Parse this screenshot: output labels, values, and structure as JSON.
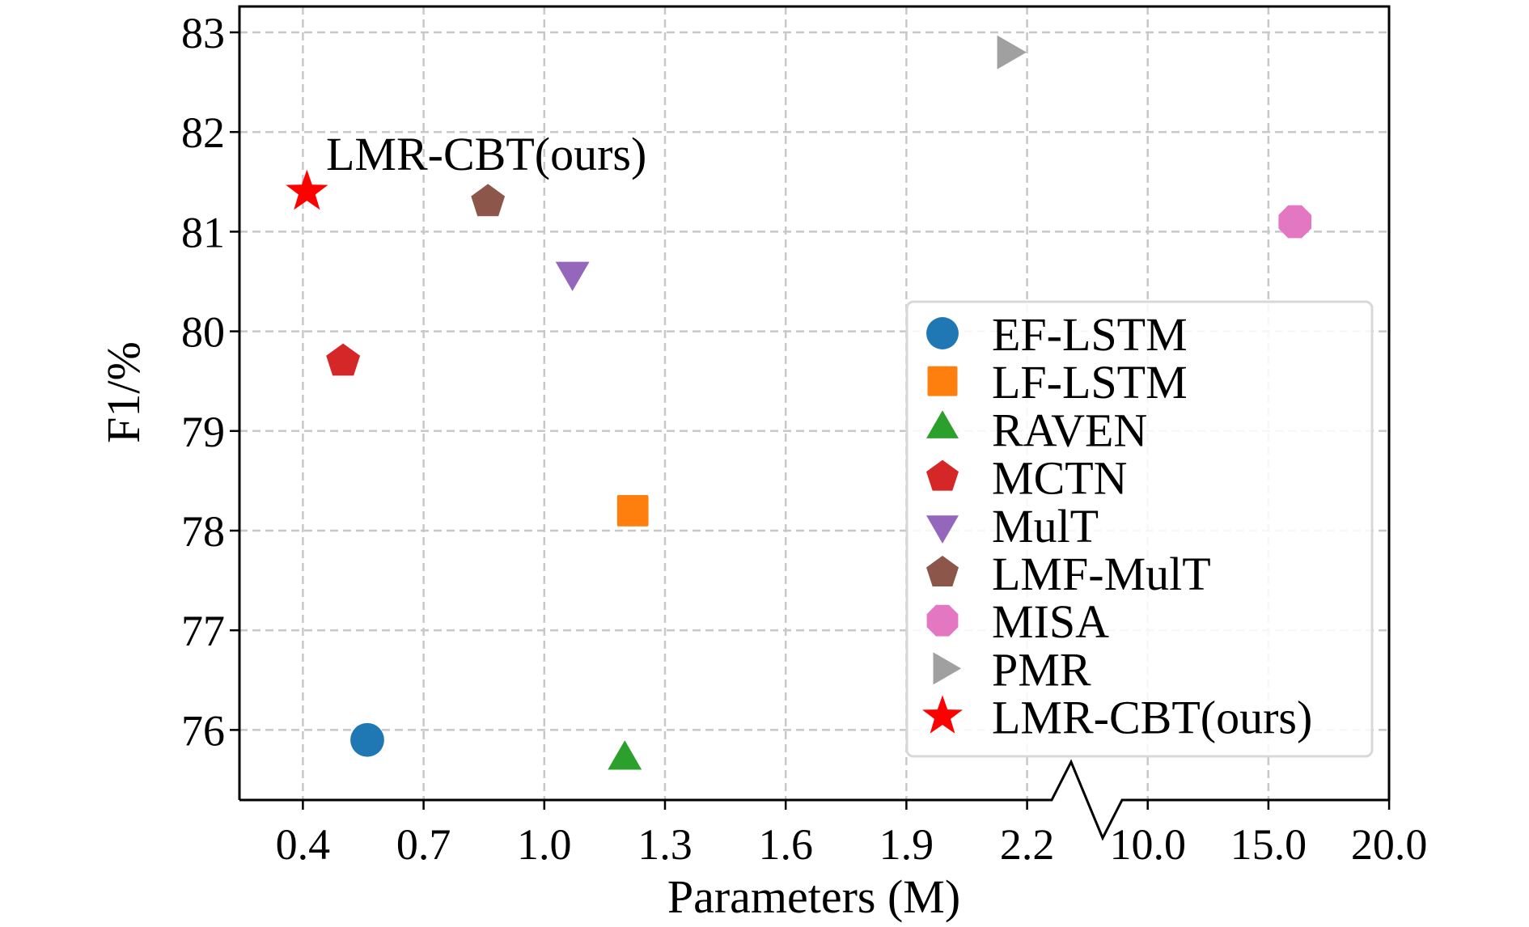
{
  "chart_data": {
    "type": "scatter",
    "title": "",
    "xlabel": "Parameters (M)",
    "ylabel": "F1/%",
    "xaxis": {
      "broken": true,
      "segments": [
        {
          "ticks": [
            0.4,
            0.7,
            1.0,
            1.3,
            1.6,
            1.9,
            2.2
          ],
          "labels": [
            "0.4",
            "0.7",
            "1.0",
            "1.3",
            "1.6",
            "1.9",
            "2.2"
          ]
        },
        {
          "ticks": [
            10.0,
            15.0,
            20.0
          ],
          "labels": [
            "10.0",
            "15.0",
            "20.0"
          ]
        }
      ]
    },
    "yticks": [
      76,
      77,
      78,
      79,
      80,
      81,
      82,
      83
    ],
    "ytick_labels": [
      "76",
      "77",
      "78",
      "79",
      "80",
      "81",
      "82",
      "83"
    ],
    "ylim": [
      75.3,
      83.26
    ],
    "grid": true,
    "legend_placement": "center-right",
    "series": [
      {
        "name": "EF-LSTM",
        "x": 0.56,
        "y": 75.9,
        "marker": "circle",
        "color": "#1f77b4"
      },
      {
        "name": "LF-LSTM",
        "x": 1.22,
        "y": 78.2,
        "marker": "square",
        "color": "#ff7f0e"
      },
      {
        "name": "RAVEN",
        "x": 1.2,
        "y": 75.7,
        "marker": "triangle-up",
        "color": "#2ca02c"
      },
      {
        "name": "MCTN",
        "x": 0.5,
        "y": 79.7,
        "marker": "pentagon",
        "color": "#d62728"
      },
      {
        "name": "MulT",
        "x": 1.07,
        "y": 80.6,
        "marker": "triangle-down",
        "color": "#9467bd"
      },
      {
        "name": "LMF-MulT",
        "x": 0.86,
        "y": 81.3,
        "marker": "pentagon",
        "color": "#8c564b"
      },
      {
        "name": "MISA",
        "x": 16.1,
        "y": 81.1,
        "marker": "octagon",
        "color": "#e377c2"
      },
      {
        "name": "PMR",
        "x": 2.15,
        "y": 82.8,
        "marker": "triangle-right",
        "color": "#a0a0a0"
      },
      {
        "name": "LMR-CBT(ours)",
        "x": 0.41,
        "y": 81.4,
        "marker": "star",
        "color": "#ff0000"
      }
    ],
    "annotations": [
      {
        "text": "LMR-CBT(ours)",
        "target": "LMR-CBT(ours)"
      }
    ]
  }
}
